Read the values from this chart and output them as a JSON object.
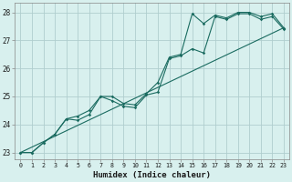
{
  "xlabel": "Humidex (Indice chaleur)",
  "background_color": "#d8f0ee",
  "grid_color": "#b0cece",
  "line_color": "#1a6b60",
  "xlim": [
    -0.5,
    23.5
  ],
  "ylim": [
    22.75,
    28.35
  ],
  "xticks": [
    0,
    1,
    2,
    3,
    4,
    5,
    6,
    7,
    8,
    9,
    10,
    11,
    12,
    13,
    14,
    15,
    16,
    17,
    18,
    19,
    20,
    21,
    22,
    23
  ],
  "yticks": [
    23,
    24,
    25,
    26,
    27,
    28
  ],
  "curve1_x": [
    0,
    1,
    2,
    3,
    4,
    5,
    6,
    7,
    8,
    9,
    10,
    11,
    12,
    13,
    14,
    15,
    16,
    17,
    18,
    19,
    20,
    21,
    22,
    23
  ],
  "curve1_y": [
    23.0,
    23.0,
    23.35,
    23.65,
    24.2,
    24.3,
    24.5,
    25.0,
    25.0,
    24.75,
    24.7,
    25.1,
    25.5,
    26.4,
    26.5,
    27.95,
    27.6,
    27.9,
    27.8,
    28.0,
    28.0,
    27.85,
    27.95,
    27.45
  ],
  "curve2_x": [
    0,
    1,
    2,
    3,
    4,
    5,
    6,
    7,
    8,
    9,
    10,
    11,
    12,
    13,
    14,
    15,
    16,
    17,
    18,
    19,
    20,
    21,
    22,
    23
  ],
  "curve2_y": [
    23.0,
    23.0,
    23.35,
    23.65,
    24.2,
    24.15,
    24.35,
    25.0,
    24.85,
    24.65,
    24.6,
    25.05,
    25.15,
    26.35,
    26.45,
    26.7,
    26.55,
    27.85,
    27.75,
    27.95,
    27.95,
    27.75,
    27.85,
    27.4
  ],
  "curve3_x": [
    0,
    23
  ],
  "curve3_y": [
    23.0,
    27.45
  ]
}
